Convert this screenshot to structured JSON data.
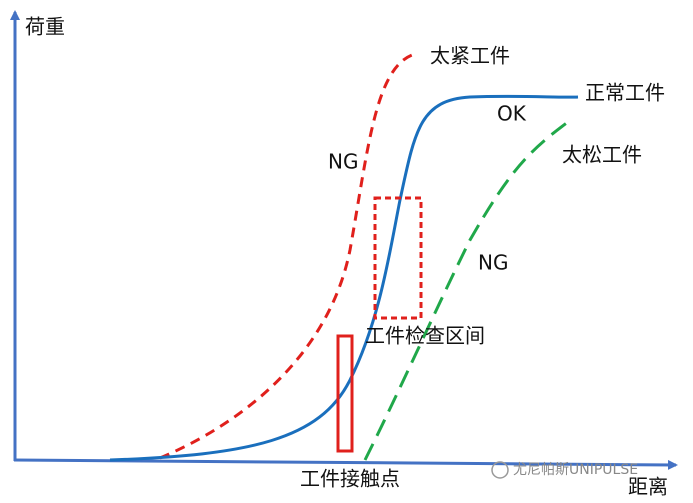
{
  "axes": {
    "y_label": "荷重",
    "x_label": "距离"
  },
  "curves": {
    "too_tight": {
      "label": "太紧工件",
      "status": "NG"
    },
    "normal": {
      "label": "正常工件",
      "status": "OK"
    },
    "too_loose": {
      "label": "太松工件",
      "status": "NG"
    }
  },
  "regions": {
    "inspection": "工件检查区间",
    "contact": "工件接触点"
  },
  "watermark": "尤尼帕斯UNIPULSE"
}
